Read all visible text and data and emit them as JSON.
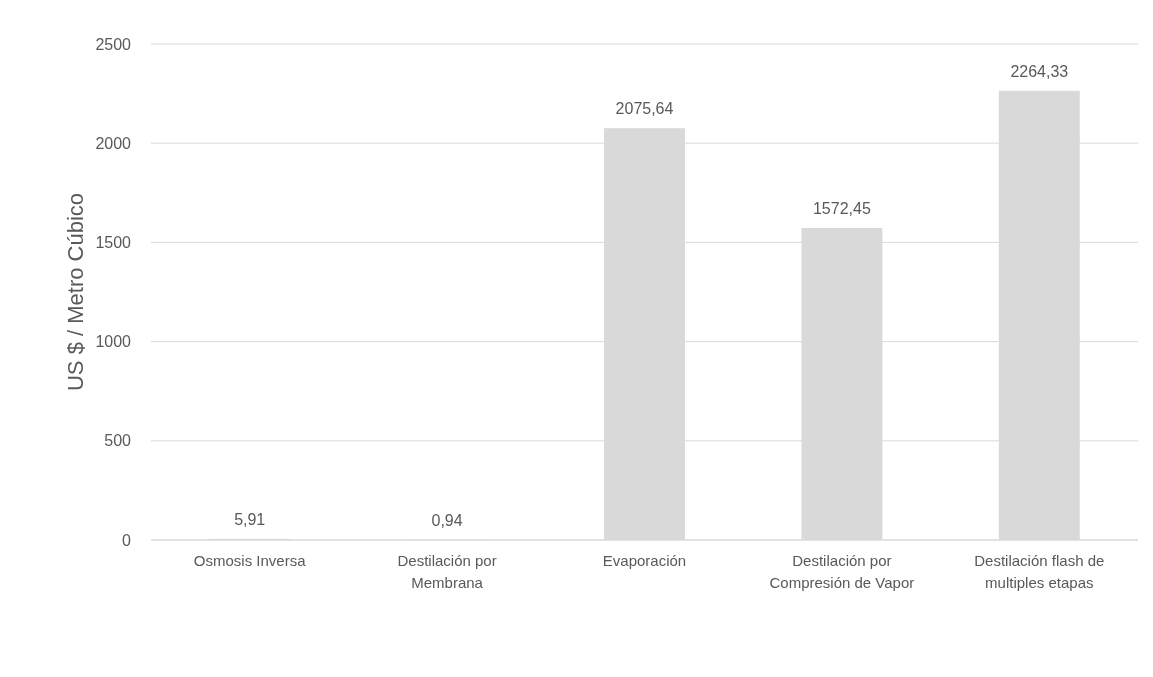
{
  "chart_data": {
    "type": "bar",
    "ylabel": "US $ / Metro Cúbico",
    "categories": [
      "Osmosis Inversa",
      "Destilación por Membrana",
      "Evaporación",
      "Destilación por Compresión de Vapor",
      "Destilación flash de multiples etapas"
    ],
    "values": [
      5.91,
      0.94,
      2075.64,
      1572.45,
      2264.33
    ],
    "value_labels": [
      "5,91",
      "0,94",
      "2075,64",
      "1572,45",
      "2264,33"
    ],
    "color": "#d9d9d9",
    "ylim": [
      0,
      2500
    ],
    "yticks": [
      0,
      500,
      1000,
      1500,
      2000,
      2500
    ],
    "grid": "y"
  }
}
